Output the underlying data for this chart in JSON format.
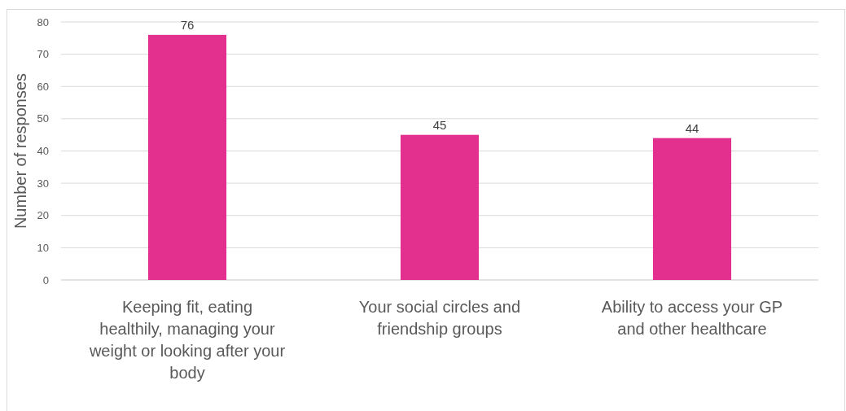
{
  "chart_data": {
    "type": "bar",
    "ylabel": "Number of responses",
    "categories": [
      "Keeping fit, eating healthily, managing your weight or looking after your body",
      "Your social circles and friendship groups",
      "Ability to access your GP and other healthcare"
    ],
    "values": [
      76,
      45,
      44
    ],
    "color": "#e3308f",
    "ylim": [
      0,
      80
    ],
    "yticks": [
      0,
      10,
      20,
      30,
      40,
      50,
      60,
      70,
      80
    ],
    "grid": "y",
    "data_labels": true
  }
}
